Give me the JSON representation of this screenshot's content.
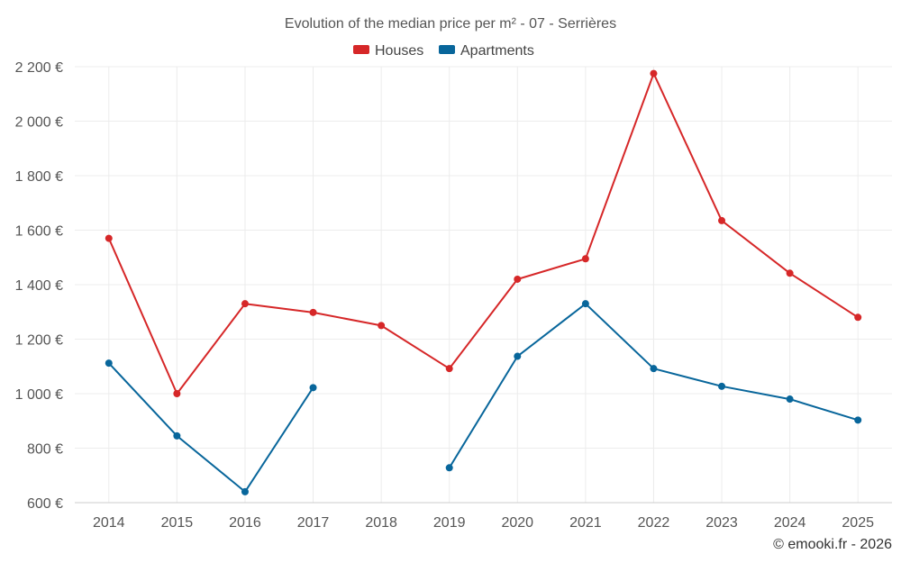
{
  "chart_data": {
    "type": "line",
    "title": "Evolution of the median price per m² - 07 - Serrières",
    "categories": [
      "2014",
      "2015",
      "2016",
      "2017",
      "2018",
      "2019",
      "2020",
      "2021",
      "2022",
      "2023",
      "2024",
      "2025"
    ],
    "series": [
      {
        "name": "Houses",
        "color": "#d62728",
        "values": [
          1570,
          1000,
          1330,
          1298,
          1250,
          1092,
          1420,
          1495,
          2175,
          1635,
          1442,
          1280
        ]
      },
      {
        "name": "Apartments",
        "color": "#08669b",
        "values": [
          1112,
          845,
          640,
          1022,
          null,
          728,
          1137,
          1330,
          1092,
          1027,
          980,
          903
        ]
      }
    ],
    "ylim": [
      600,
      2200
    ],
    "yticks": [
      600,
      800,
      1000,
      1200,
      1400,
      1600,
      1800,
      2000,
      2200
    ],
    "ytick_labels": [
      "600 €",
      "800 €",
      "1 000 €",
      "1 200 €",
      "1 400 €",
      "1 600 €",
      "1 800 €",
      "2 000 €",
      "2 200 €"
    ],
    "xlabel": "",
    "ylabel": "",
    "grid": true,
    "legend_position": "top-center",
    "credit": "© emooki.fr - 2026"
  }
}
